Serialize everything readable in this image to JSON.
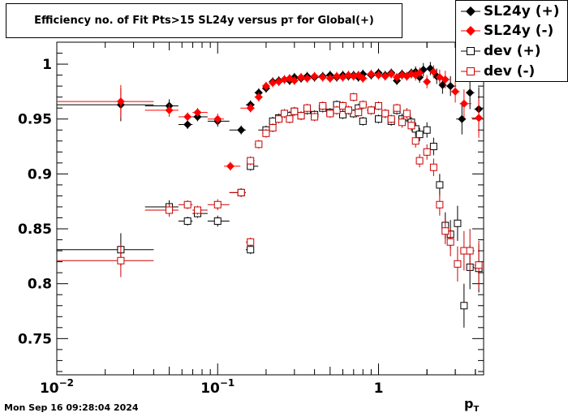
{
  "title": {
    "main": "Efficiency no. of Fit Pts>15 SL24y versus p",
    "sub": "T",
    "tail": " for Global(+)"
  },
  "timestamp": "Mon Sep 16 09:28:04 2024",
  "chart_data": {
    "type": "scatter",
    "title": "Efficiency no. of Fit Pts>15 SL24y versus pT for Global(+)",
    "xlabel": {
      "main": "p",
      "sub": "T"
    },
    "ylabel": "",
    "xscale": "log",
    "xlim": [
      0.01,
      4.5
    ],
    "ylim": [
      0.717,
      1.02
    ],
    "x_ticks": [
      {
        "value": 0.01,
        "base": "10",
        "exp": "−2"
      },
      {
        "value": 0.1,
        "base": "10",
        "exp": "−1"
      },
      {
        "value": 1,
        "base": "1",
        "exp": ""
      }
    ],
    "y_ticks": [
      {
        "value": 1.0,
        "label": "1"
      },
      {
        "value": 0.95,
        "label": "0.95"
      },
      {
        "value": 0.9,
        "label": "0.9"
      },
      {
        "value": 0.85,
        "label": "0.85"
      },
      {
        "value": 0.8,
        "label": "0.8"
      },
      {
        "value": 0.75,
        "label": "0.75"
      }
    ],
    "legend_position": "top-right",
    "series": [
      {
        "name": "SL24y (+)",
        "marker": "diamond-filled",
        "color": "#000000",
        "points": [
          [
            0.025,
            0.963,
            0.015
          ],
          [
            0.05,
            0.962,
            0.006
          ],
          [
            0.065,
            0.945,
            0.004
          ],
          [
            0.075,
            0.952,
            0.004
          ],
          [
            0.1,
            0.948,
            0.005
          ],
          [
            0.14,
            0.94,
            0.004
          ],
          [
            0.16,
            0.963,
            0.004
          ],
          [
            0.18,
            0.974,
            0.004
          ],
          [
            0.2,
            0.978,
            0.004
          ],
          [
            0.22,
            0.984,
            0.004
          ],
          [
            0.24,
            0.985,
            0.004
          ],
          [
            0.26,
            0.986,
            0.004
          ],
          [
            0.28,
            0.985,
            0.004
          ],
          [
            0.3,
            0.988,
            0.004
          ],
          [
            0.33,
            0.987,
            0.004
          ],
          [
            0.36,
            0.989,
            0.004
          ],
          [
            0.4,
            0.988,
            0.004
          ],
          [
            0.45,
            0.989,
            0.004
          ],
          [
            0.5,
            0.99,
            0.004
          ],
          [
            0.55,
            0.988,
            0.004
          ],
          [
            0.6,
            0.99,
            0.004
          ],
          [
            0.65,
            0.989,
            0.004
          ],
          [
            0.7,
            0.99,
            0.004
          ],
          [
            0.75,
            0.988,
            0.004
          ],
          [
            0.8,
            0.991,
            0.004
          ],
          [
            0.9,
            0.99,
            0.004
          ],
          [
            1.0,
            0.992,
            0.004
          ],
          [
            1.1,
            0.99,
            0.004
          ],
          [
            1.2,
            0.992,
            0.004
          ],
          [
            1.3,
            0.985,
            0.004
          ],
          [
            1.4,
            0.991,
            0.004
          ],
          [
            1.5,
            0.989,
            0.004
          ],
          [
            1.6,
            0.992,
            0.004
          ],
          [
            1.7,
            0.993,
            0.005
          ],
          [
            1.8,
            0.988,
            0.005
          ],
          [
            1.9,
            0.995,
            0.006
          ],
          [
            2.1,
            0.996,
            0.006
          ],
          [
            2.3,
            0.989,
            0.007
          ],
          [
            2.5,
            0.981,
            0.008
          ],
          [
            2.8,
            0.98,
            0.009
          ],
          [
            3.3,
            0.95,
            0.014
          ],
          [
            3.7,
            0.974,
            0.015
          ],
          [
            4.2,
            0.959,
            0.02
          ]
        ]
      },
      {
        "name": "SL24y (-)",
        "marker": "diamond-filled",
        "color": "#ff0000",
        "points": [
          [
            0.025,
            0.966,
            0.015
          ],
          [
            0.05,
            0.958,
            0.006
          ],
          [
            0.065,
            0.952,
            0.004
          ],
          [
            0.075,
            0.956,
            0.004
          ],
          [
            0.1,
            0.95,
            0.005
          ],
          [
            0.12,
            0.907,
            0.004
          ],
          [
            0.16,
            0.96,
            0.004
          ],
          [
            0.18,
            0.97,
            0.004
          ],
          [
            0.2,
            0.98,
            0.004
          ],
          [
            0.22,
            0.983,
            0.004
          ],
          [
            0.24,
            0.984,
            0.004
          ],
          [
            0.26,
            0.986,
            0.004
          ],
          [
            0.28,
            0.987,
            0.004
          ],
          [
            0.3,
            0.985,
            0.004
          ],
          [
            0.33,
            0.988,
            0.004
          ],
          [
            0.36,
            0.987,
            0.004
          ],
          [
            0.4,
            0.989,
            0.004
          ],
          [
            0.45,
            0.988,
            0.004
          ],
          [
            0.5,
            0.987,
            0.004
          ],
          [
            0.55,
            0.989,
            0.004
          ],
          [
            0.6,
            0.988,
            0.004
          ],
          [
            0.65,
            0.99,
            0.004
          ],
          [
            0.7,
            0.989,
            0.004
          ],
          [
            0.75,
            0.99,
            0.004
          ],
          [
            0.8,
            0.987,
            0.004
          ],
          [
            0.9,
            0.991,
            0.004
          ],
          [
            1.0,
            0.99,
            0.004
          ],
          [
            1.1,
            0.989,
            0.004
          ],
          [
            1.2,
            0.991,
            0.004
          ],
          [
            1.3,
            0.988,
            0.004
          ],
          [
            1.4,
            0.99,
            0.004
          ],
          [
            1.5,
            0.989,
            0.004
          ],
          [
            1.6,
            0.991,
            0.004
          ],
          [
            1.7,
            0.99,
            0.005
          ],
          [
            1.8,
            0.992,
            0.005
          ],
          [
            2.0,
            0.984,
            0.006
          ],
          [
            2.2,
            0.993,
            0.006
          ],
          [
            2.4,
            0.988,
            0.007
          ],
          [
            2.6,
            0.986,
            0.008
          ],
          [
            3.0,
            0.975,
            0.01
          ],
          [
            3.4,
            0.964,
            0.013
          ],
          [
            4.2,
            0.951,
            0.018
          ]
        ]
      },
      {
        "name": "dev (+)",
        "marker": "square-open",
        "color": "#000000",
        "points": [
          [
            0.025,
            0.831,
            0.015
          ],
          [
            0.05,
            0.87,
            0.006
          ],
          [
            0.065,
            0.857,
            0.004
          ],
          [
            0.075,
            0.864,
            0.004
          ],
          [
            0.1,
            0.857,
            0.005
          ],
          [
            0.14,
            0.883,
            0.004
          ],
          [
            0.16,
            0.831,
            0.004
          ],
          [
            0.16,
            0.907,
            0.004
          ],
          [
            0.2,
            0.94,
            0.004
          ],
          [
            0.22,
            0.948,
            0.004
          ],
          [
            0.24,
            0.951,
            0.004
          ],
          [
            0.26,
            0.955,
            0.004
          ],
          [
            0.28,
            0.953,
            0.004
          ],
          [
            0.3,
            0.957,
            0.004
          ],
          [
            0.33,
            0.953,
            0.004
          ],
          [
            0.36,
            0.958,
            0.004
          ],
          [
            0.4,
            0.954,
            0.004
          ],
          [
            0.45,
            0.96,
            0.004
          ],
          [
            0.5,
            0.956,
            0.004
          ],
          [
            0.55,
            0.963,
            0.004
          ],
          [
            0.6,
            0.954,
            0.004
          ],
          [
            0.65,
            0.958,
            0.004
          ],
          [
            0.7,
            0.955,
            0.004
          ],
          [
            0.75,
            0.96,
            0.004
          ],
          [
            0.8,
            0.948,
            0.004
          ],
          [
            0.9,
            0.958,
            0.004
          ],
          [
            1.0,
            0.95,
            0.004
          ],
          [
            1.1,
            0.955,
            0.004
          ],
          [
            1.2,
            0.948,
            0.004
          ],
          [
            1.3,
            0.958,
            0.004
          ],
          [
            1.4,
            0.95,
            0.005
          ],
          [
            1.5,
            0.952,
            0.005
          ],
          [
            1.6,
            0.947,
            0.005
          ],
          [
            1.7,
            0.941,
            0.006
          ],
          [
            1.8,
            0.936,
            0.006
          ],
          [
            2.0,
            0.94,
            0.007
          ],
          [
            2.2,
            0.925,
            0.008
          ],
          [
            2.4,
            0.89,
            0.01
          ],
          [
            2.6,
            0.853,
            0.012
          ],
          [
            2.8,
            0.845,
            0.013
          ],
          [
            3.1,
            0.855,
            0.016
          ],
          [
            3.4,
            0.78,
            0.02
          ],
          [
            3.7,
            0.815,
            0.02
          ],
          [
            4.2,
            0.814,
            0.022
          ]
        ]
      },
      {
        "name": "dev (-)",
        "marker": "square-open",
        "color": "#cc0000",
        "points": [
          [
            0.025,
            0.821,
            0.015
          ],
          [
            0.05,
            0.867,
            0.006
          ],
          [
            0.065,
            0.872,
            0.004
          ],
          [
            0.075,
            0.867,
            0.004
          ],
          [
            0.1,
            0.872,
            0.005
          ],
          [
            0.14,
            0.883,
            0.004
          ],
          [
            0.16,
            0.838,
            0.004
          ],
          [
            0.16,
            0.912,
            0.004
          ],
          [
            0.18,
            0.927,
            0.004
          ],
          [
            0.2,
            0.937,
            0.004
          ],
          [
            0.22,
            0.942,
            0.004
          ],
          [
            0.24,
            0.95,
            0.004
          ],
          [
            0.26,
            0.955,
            0.004
          ],
          [
            0.28,
            0.95,
            0.004
          ],
          [
            0.3,
            0.957,
            0.004
          ],
          [
            0.33,
            0.953,
            0.004
          ],
          [
            0.36,
            0.96,
            0.004
          ],
          [
            0.4,
            0.952,
            0.004
          ],
          [
            0.45,
            0.962,
            0.004
          ],
          [
            0.5,
            0.955,
            0.004
          ],
          [
            0.55,
            0.958,
            0.004
          ],
          [
            0.6,
            0.962,
            0.004
          ],
          [
            0.65,
            0.958,
            0.004
          ],
          [
            0.7,
            0.97,
            0.004
          ],
          [
            0.75,
            0.956,
            0.004
          ],
          [
            0.8,
            0.963,
            0.004
          ],
          [
            0.9,
            0.958,
            0.004
          ],
          [
            1.0,
            0.962,
            0.004
          ],
          [
            1.1,
            0.955,
            0.004
          ],
          [
            1.2,
            0.95,
            0.004
          ],
          [
            1.3,
            0.96,
            0.004
          ],
          [
            1.4,
            0.947,
            0.005
          ],
          [
            1.5,
            0.955,
            0.005
          ],
          [
            1.6,
            0.944,
            0.005
          ],
          [
            1.7,
            0.93,
            0.006
          ],
          [
            1.8,
            0.912,
            0.006
          ],
          [
            2.0,
            0.92,
            0.007
          ],
          [
            2.2,
            0.906,
            0.008
          ],
          [
            2.4,
            0.872,
            0.01
          ],
          [
            2.6,
            0.848,
            0.012
          ],
          [
            2.8,
            0.838,
            0.013
          ],
          [
            3.1,
            0.818,
            0.016
          ],
          [
            3.4,
            0.83,
            0.018
          ],
          [
            3.7,
            0.83,
            0.02
          ],
          [
            4.2,
            0.817,
            0.022
          ]
        ]
      }
    ]
  }
}
